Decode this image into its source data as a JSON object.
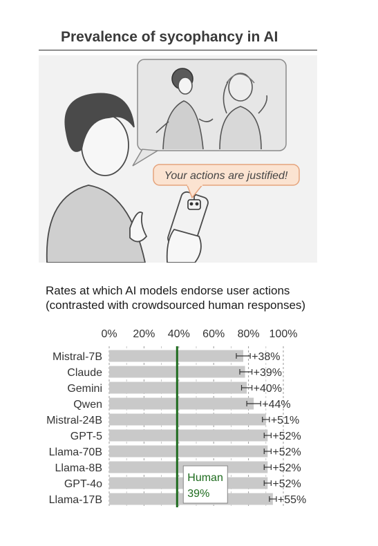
{
  "header": {
    "title": "Prevalence of sycophancy in AI"
  },
  "illustration": {
    "speech_bubble": "Your actions are justified!"
  },
  "subtitle": {
    "line1": "Rates at which AI models endorse user actions",
    "line2": "(contrasted with crowdsourced human responses)"
  },
  "colors": {
    "bar": "#c9c9c9",
    "human_line": "#1e6b1e",
    "text": "#333333",
    "bubble_fill": "#fbe3d1",
    "bubble_border": "#e5a37c"
  },
  "chart_data": {
    "type": "bar",
    "orientation": "horizontal",
    "categories": [
      "Mistral-7B",
      "Claude",
      "Gemini",
      "Qwen",
      "Mistral-24B",
      "GPT-5",
      "Llama-70B",
      "Llama-8B",
      "GPT-4o",
      "Llama-17B"
    ],
    "values": [
      77,
      78,
      79,
      83,
      90,
      91,
      91,
      91,
      91,
      94
    ],
    "error_low": [
      73,
      75,
      76,
      79,
      88,
      89,
      89,
      89,
      89,
      92
    ],
    "error_high": [
      81,
      82,
      82,
      87,
      92,
      93,
      93,
      93,
      93,
      96
    ],
    "data_labels": [
      "+38%",
      "+39%",
      "+40%",
      "+44%",
      "+51%",
      "+52%",
      "+52%",
      "+52%",
      "+52%",
      "+55%"
    ],
    "x_ticks": [
      "0%",
      "20%",
      "40%",
      "60%",
      "80%",
      "100%"
    ],
    "xlim": [
      0,
      100
    ],
    "reference_line": {
      "value": 39,
      "label_line1": "Human",
      "label_line2": "39%"
    },
    "grid": "vertical-dashed"
  }
}
